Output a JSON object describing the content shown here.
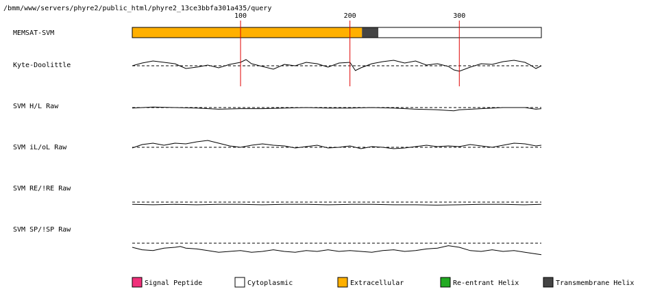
{
  "header": {
    "path": "/bmm/www/servers/phyre2/public_html/phyre2_13ce3bbfa301a435/query"
  },
  "track_labels": {
    "memsat": "MEMSAT-SVM",
    "kd": "Kyte-Doolittle",
    "hl": "SVM H/L Raw",
    "iloo": "SVM iL/oL Raw",
    "reire": "SVM RE/!RE Raw",
    "spisp": "SVM SP/!SP Raw"
  },
  "chart_data": {
    "type": "line",
    "sequence_length": 375,
    "ruler_ticks": [
      100,
      200,
      300
    ],
    "tick_labels": [
      "100",
      "200",
      "300"
    ],
    "topology_segments": [
      {
        "start": 1,
        "end": 211,
        "class": "Extracellular"
      },
      {
        "start": 211,
        "end": 226,
        "class": "Transmembrane Helix"
      },
      {
        "start": 226,
        "end": 375,
        "class": "Cytoplasmic"
      }
    ],
    "legend": [
      {
        "label": "Signal Peptide",
        "color": "#f0307a"
      },
      {
        "label": "Cytoplasmic",
        "color": "#ffffff"
      },
      {
        "label": "Extracellular",
        "color": "#ffb000"
      },
      {
        "label": "Re-entrant Helix",
        "color": "#22aa22"
      },
      {
        "label": "Transmembrane Helix",
        "color": "#444444"
      }
    ],
    "colors": {
      "extracellular": "#ffb000",
      "transmembrane": "#444444",
      "cytoplasmic": "#ffffff",
      "ruler": "#e00000",
      "line": "#000000"
    },
    "profiles": [
      {
        "name": "Kyte-Doolittle",
        "points": [
          [
            1,
            0.0
          ],
          [
            10,
            0.4
          ],
          [
            20,
            0.7
          ],
          [
            30,
            0.5
          ],
          [
            40,
            0.3
          ],
          [
            50,
            -0.4
          ],
          [
            60,
            -0.2
          ],
          [
            70,
            0.1
          ],
          [
            80,
            -0.3
          ],
          [
            90,
            0.2
          ],
          [
            100,
            0.5
          ],
          [
            105,
            0.9
          ],
          [
            110,
            0.3
          ],
          [
            120,
            -0.1
          ],
          [
            130,
            -0.5
          ],
          [
            140,
            0.2
          ],
          [
            150,
            0.0
          ],
          [
            160,
            0.5
          ],
          [
            170,
            0.3
          ],
          [
            180,
            -0.2
          ],
          [
            190,
            0.4
          ],
          [
            200,
            0.5
          ],
          [
            205,
            -0.7
          ],
          [
            210,
            -0.3
          ],
          [
            220,
            0.3
          ],
          [
            230,
            0.6
          ],
          [
            240,
            0.8
          ],
          [
            250,
            0.4
          ],
          [
            260,
            0.7
          ],
          [
            270,
            0.1
          ],
          [
            280,
            0.3
          ],
          [
            290,
            -0.1
          ],
          [
            295,
            -0.6
          ],
          [
            300,
            -0.8
          ],
          [
            310,
            -0.2
          ],
          [
            320,
            0.3
          ],
          [
            330,
            0.2
          ],
          [
            340,
            0.6
          ],
          [
            350,
            0.8
          ],
          [
            360,
            0.5
          ],
          [
            365,
            0.1
          ],
          [
            370,
            -0.4
          ],
          [
            375,
            0.0
          ]
        ]
      },
      {
        "name": "SVM H/L Raw",
        "points": [
          [
            1,
            -0.1
          ],
          [
            20,
            0.1
          ],
          [
            40,
            0.0
          ],
          [
            60,
            -0.1
          ],
          [
            80,
            -0.3
          ],
          [
            100,
            -0.2
          ],
          [
            120,
            -0.2
          ],
          [
            140,
            -0.1
          ],
          [
            160,
            0.0
          ],
          [
            180,
            -0.1
          ],
          [
            200,
            -0.1
          ],
          [
            220,
            0.0
          ],
          [
            240,
            -0.1
          ],
          [
            260,
            -0.3
          ],
          [
            280,
            -0.4
          ],
          [
            295,
            -0.6
          ],
          [
            300,
            -0.4
          ],
          [
            320,
            -0.2
          ],
          [
            340,
            0.0
          ],
          [
            360,
            0.0
          ],
          [
            370,
            -0.3
          ],
          [
            375,
            -0.2
          ]
        ]
      },
      {
        "name": "SVM iL/oL Raw",
        "points": [
          [
            1,
            -0.1
          ],
          [
            10,
            0.4
          ],
          [
            20,
            0.6
          ],
          [
            30,
            0.3
          ],
          [
            40,
            0.6
          ],
          [
            50,
            0.5
          ],
          [
            60,
            0.8
          ],
          [
            70,
            1.0
          ],
          [
            80,
            0.6
          ],
          [
            90,
            0.2
          ],
          [
            100,
            0.0
          ],
          [
            110,
            0.3
          ],
          [
            120,
            0.5
          ],
          [
            130,
            0.3
          ],
          [
            140,
            0.2
          ],
          [
            150,
            -0.1
          ],
          [
            160,
            0.1
          ],
          [
            170,
            0.3
          ],
          [
            180,
            -0.1
          ],
          [
            190,
            0.0
          ],
          [
            200,
            0.2
          ],
          [
            210,
            -0.2
          ],
          [
            220,
            0.1
          ],
          [
            230,
            0.0
          ],
          [
            240,
            -0.2
          ],
          [
            250,
            -0.1
          ],
          [
            260,
            0.1
          ],
          [
            270,
            0.3
          ],
          [
            280,
            0.1
          ],
          [
            290,
            0.2
          ],
          [
            300,
            0.1
          ],
          [
            310,
            0.4
          ],
          [
            320,
            0.2
          ],
          [
            330,
            0.0
          ],
          [
            340,
            0.3
          ],
          [
            350,
            0.6
          ],
          [
            360,
            0.5
          ],
          [
            370,
            0.2
          ],
          [
            375,
            0.3
          ]
        ]
      },
      {
        "name": "SVM RE/!RE Raw",
        "points": [
          [
            1,
            -0.3
          ],
          [
            20,
            -0.35
          ],
          [
            40,
            -0.3
          ],
          [
            60,
            -0.35
          ],
          [
            80,
            -0.3
          ],
          [
            100,
            -0.3
          ],
          [
            120,
            -0.35
          ],
          [
            140,
            -0.3
          ],
          [
            160,
            -0.3
          ],
          [
            180,
            -0.35
          ],
          [
            200,
            -0.3
          ],
          [
            220,
            -0.3
          ],
          [
            240,
            -0.35
          ],
          [
            260,
            -0.35
          ],
          [
            280,
            -0.4
          ],
          [
            300,
            -0.35
          ],
          [
            320,
            -0.3
          ],
          [
            340,
            -0.3
          ],
          [
            360,
            -0.35
          ],
          [
            375,
            -0.3
          ]
        ]
      },
      {
        "name": "SVM SP/!SP Raw",
        "points": [
          [
            1,
            -0.5
          ],
          [
            10,
            -0.8
          ],
          [
            20,
            -0.9
          ],
          [
            30,
            -0.6
          ],
          [
            40,
            -0.5
          ],
          [
            45,
            -0.4
          ],
          [
            50,
            -0.6
          ],
          [
            60,
            -0.7
          ],
          [
            70,
            -0.9
          ],
          [
            80,
            -1.1
          ],
          [
            90,
            -1.0
          ],
          [
            100,
            -0.9
          ],
          [
            110,
            -1.1
          ],
          [
            120,
            -1.0
          ],
          [
            130,
            -0.8
          ],
          [
            140,
            -1.0
          ],
          [
            150,
            -1.1
          ],
          [
            160,
            -0.9
          ],
          [
            170,
            -1.0
          ],
          [
            180,
            -0.8
          ],
          [
            190,
            -1.0
          ],
          [
            200,
            -0.9
          ],
          [
            210,
            -1.0
          ],
          [
            220,
            -1.1
          ],
          [
            230,
            -0.9
          ],
          [
            240,
            -0.8
          ],
          [
            250,
            -1.0
          ],
          [
            260,
            -0.9
          ],
          [
            270,
            -0.7
          ],
          [
            280,
            -0.6
          ],
          [
            290,
            -0.3
          ],
          [
            300,
            -0.5
          ],
          [
            310,
            -0.9
          ],
          [
            320,
            -1.0
          ],
          [
            330,
            -0.8
          ],
          [
            340,
            -1.0
          ],
          [
            350,
            -0.9
          ],
          [
            360,
            -1.1
          ],
          [
            370,
            -1.3
          ],
          [
            375,
            -1.4
          ]
        ]
      }
    ]
  }
}
